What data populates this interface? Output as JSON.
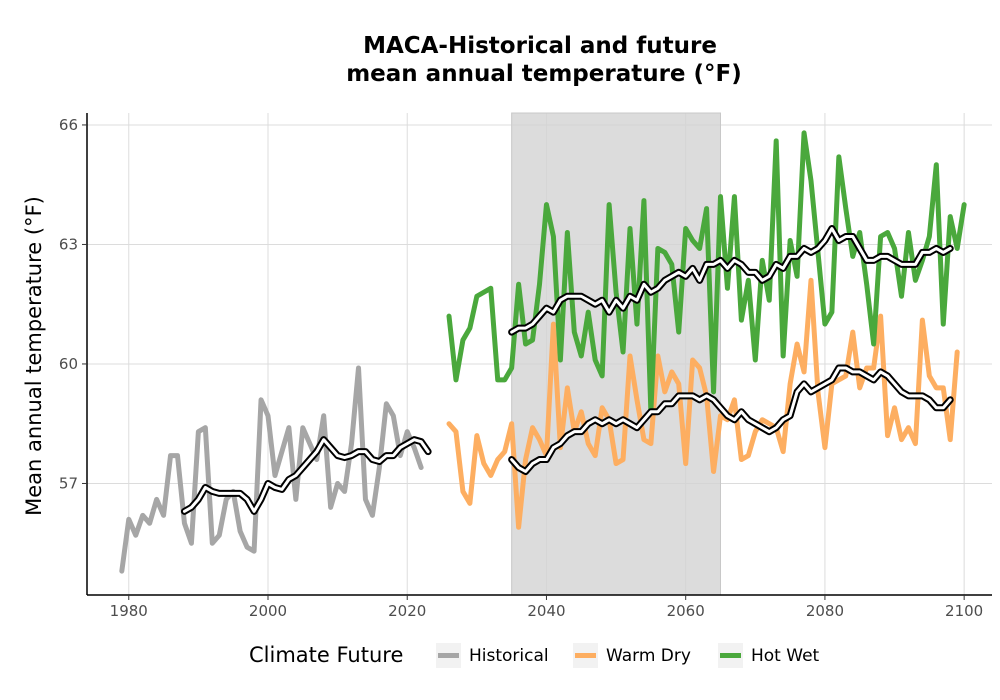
{
  "chart_data": {
    "type": "line",
    "title_line1": "MACA-Historical and future",
    "title_line2": "mean annual temperature (°F)",
    "xlabel": "",
    "ylabel": "Mean annual temperature (°F)",
    "xlim": [
      1974,
      2104
    ],
    "ylim": [
      54.2,
      66.3
    ],
    "x_ticks": [
      1980,
      2000,
      2020,
      2040,
      2060,
      2080,
      2100
    ],
    "x_tick_labels": [
      "1980",
      "2000",
      "2020",
      "2040",
      "2060",
      "2080",
      "2100"
    ],
    "y_ticks": [
      57,
      60,
      63,
      66
    ],
    "y_tick_labels": [
      "57",
      "60",
      "63",
      "66"
    ],
    "grid": true,
    "shaded_period": [
      2035,
      2065
    ],
    "legend": {
      "title": "Climate Future",
      "placement": "bottom",
      "entries": [
        "Historical",
        "Warm Dry",
        "Hot Wet"
      ]
    },
    "series": [
      {
        "name": "Historical",
        "color": "#a6a6a6",
        "x_start": 1979,
        "values": [
          54.8,
          56.1,
          55.7,
          56.2,
          56.0,
          56.6,
          56.2,
          57.7,
          57.7,
          56.0,
          55.5,
          58.3,
          58.4,
          55.5,
          55.7,
          56.6,
          56.8,
          55.8,
          55.4,
          55.3,
          59.1,
          58.7,
          57.2,
          57.8,
          58.4,
          56.6,
          58.4,
          58.0,
          57.6,
          58.7,
          56.4,
          57.0,
          56.8,
          58.0,
          59.9,
          56.6,
          56.2,
          57.4,
          59.0,
          58.7,
          57.7,
          58.3,
          57.9,
          57.4
        ]
      },
      {
        "name": "Historical smoothed",
        "color": "#000000",
        "x_start": 1988,
        "values": [
          56.3,
          56.4,
          56.6,
          56.9,
          56.8,
          56.75,
          56.75,
          56.75,
          56.75,
          56.6,
          56.3,
          56.6,
          57.0,
          56.9,
          56.85,
          57.1,
          57.2,
          57.4,
          57.6,
          57.8,
          58.1,
          57.9,
          57.7,
          57.65,
          57.7,
          57.8,
          57.8,
          57.6,
          57.55,
          57.7,
          57.7,
          57.9,
          58.0,
          58.1,
          58.05,
          57.8
        ]
      },
      {
        "name": "Warm Dry",
        "color": "#fdae61",
        "x_start": 2026,
        "values": [
          58.5,
          58.3,
          56.8,
          56.5,
          58.2,
          57.5,
          57.2,
          57.6,
          57.8,
          58.5,
          55.9,
          57.6,
          58.4,
          58.1,
          57.7,
          61.0,
          57.9,
          59.4,
          58.3,
          58.8,
          58.0,
          57.7,
          58.9,
          58.6,
          57.5,
          57.6,
          60.2,
          59.1,
          58.1,
          58.0,
          60.2,
          59.3,
          59.8,
          59.5,
          57.5,
          60.1,
          59.9,
          59.2,
          57.3,
          58.7,
          58.6,
          59.1,
          57.6,
          57.7,
          58.3,
          58.6,
          58.5,
          58.4,
          57.8,
          59.5,
          60.5,
          59.8,
          62.1,
          59.3,
          57.9,
          59.5,
          59.6,
          59.7,
          60.8,
          59.4,
          59.9,
          59.9,
          61.2,
          58.2,
          58.9,
          58.1,
          58.4,
          58.0,
          61.1,
          59.7,
          59.4,
          59.4,
          58.1,
          60.3
        ]
      },
      {
        "name": "Hot Wet",
        "color": "#4aa83c",
        "x_start": 2026,
        "values": [
          61.2,
          59.6,
          60.6,
          60.9,
          61.7,
          61.8,
          61.9,
          59.6,
          59.6,
          59.9,
          62.0,
          60.5,
          60.6,
          62.0,
          64.0,
          63.2,
          60.1,
          63.3,
          60.8,
          60.2,
          61.3,
          60.1,
          59.7,
          64.0,
          61.8,
          60.3,
          63.4,
          61.0,
          64.1,
          58.8,
          62.9,
          62.8,
          62.5,
          60.8,
          63.4,
          63.1,
          62.9,
          63.9,
          59.3,
          64.2,
          61.9,
          64.2,
          61.1,
          62.1,
          60.1,
          62.6,
          61.6,
          65.6,
          60.2,
          63.1,
          62.2,
          65.8,
          64.6,
          62.8,
          61.0,
          61.3,
          65.2,
          63.9,
          62.7,
          63.3,
          62.0,
          60.5,
          63.2,
          63.3,
          62.9,
          61.7,
          63.3,
          62.1,
          62.6,
          63.2,
          65.0,
          61.0,
          63.7,
          62.9,
          64.0
        ]
      },
      {
        "name": "Warm Dry smoothed",
        "color": "#000000",
        "x_start": 2035,
        "values": [
          57.6,
          57.4,
          57.3,
          57.5,
          57.6,
          57.6,
          57.9,
          58.0,
          58.2,
          58.3,
          58.3,
          58.5,
          58.6,
          58.5,
          58.6,
          58.5,
          58.6,
          58.5,
          58.4,
          58.6,
          58.8,
          58.8,
          59.0,
          59.0,
          59.2,
          59.2,
          59.2,
          59.1,
          59.2,
          59.1,
          58.9,
          58.7,
          58.6,
          58.8,
          58.6,
          58.5,
          58.4,
          58.3,
          58.4,
          58.6,
          58.7,
          59.3,
          59.5,
          59.3,
          59.4,
          59.5,
          59.6,
          59.9,
          59.9,
          59.8,
          59.8,
          59.7,
          59.6,
          59.8,
          59.7,
          59.5,
          59.3,
          59.2,
          59.2,
          59.2,
          59.1,
          58.9,
          58.9,
          59.1
        ]
      },
      {
        "name": "Hot Wet smoothed",
        "color": "#000000",
        "x_start": 2035,
        "values": [
          60.8,
          60.9,
          60.9,
          61.0,
          61.2,
          61.4,
          61.3,
          61.6,
          61.7,
          61.7,
          61.7,
          61.6,
          61.5,
          61.6,
          61.3,
          61.6,
          61.4,
          61.7,
          61.6,
          62.0,
          61.8,
          61.9,
          62.1,
          62.2,
          62.3,
          62.2,
          62.4,
          62.1,
          62.5,
          62.5,
          62.6,
          62.4,
          62.6,
          62.5,
          62.3,
          62.3,
          62.1,
          62.2,
          62.5,
          62.4,
          62.7,
          62.7,
          62.9,
          62.8,
          62.9,
          63.1,
          63.4,
          63.1,
          63.2,
          63.2,
          62.9,
          62.6,
          62.6,
          62.7,
          62.7,
          62.6,
          62.5,
          62.5,
          62.5,
          62.8,
          62.8,
          62.9,
          62.8,
          62.9
        ]
      }
    ]
  }
}
